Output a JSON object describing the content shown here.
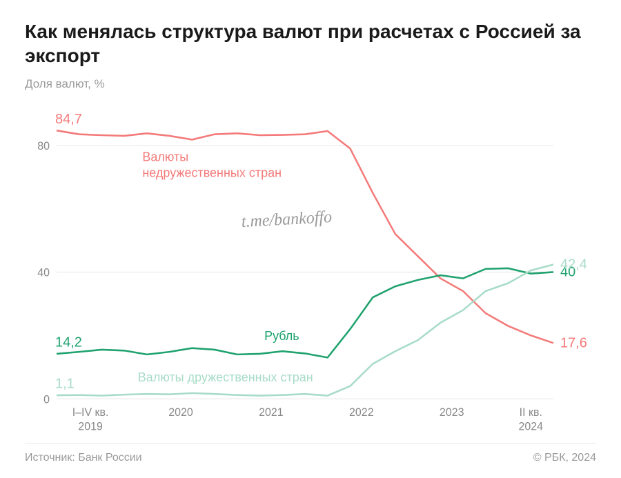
{
  "title": "Как менялась структура валют при расчетах с Россией за экспорт",
  "subtitle": "Доля валют, %",
  "chart": {
    "type": "line",
    "background_color": "#ffffff",
    "grid_color": "#e8e8e8",
    "axis_label_color": "#888888",
    "ylim": [
      0,
      90
    ],
    "yticks": [
      0,
      40,
      80
    ],
    "x_index_range": [
      0,
      22
    ],
    "x_ticks": [
      {
        "idx": 1.5,
        "line1": "I–IV кв.",
        "line2": "2019"
      },
      {
        "idx": 5.5,
        "line1": "2020"
      },
      {
        "idx": 9.5,
        "line1": "2021"
      },
      {
        "idx": 13.5,
        "line1": "2022"
      },
      {
        "idx": 17.5,
        "line1": "2023"
      },
      {
        "idx": 21,
        "line1": "II кв.",
        "line2": "2024"
      }
    ],
    "series": [
      {
        "name": "Валюты недружественных стран",
        "label_line1": "Валюты",
        "label_line2": "недружественных стран",
        "color": "#f47a7a",
        "start_label": "84,7",
        "end_label": "17,6",
        "line_width": 2.5,
        "label_pos": {
          "x_idx": 3.8,
          "y_val": 75
        },
        "values": [
          84.7,
          83.5,
          83.2,
          83.0,
          83.8,
          83.0,
          81.8,
          83.5,
          83.8,
          83.2,
          83.3,
          83.5,
          84.5,
          79.0,
          65.0,
          52.0,
          45.0,
          38.0,
          34.0,
          27.0,
          23.0,
          20.0,
          17.6
        ]
      },
      {
        "name": "Рубль",
        "label_line1": "Рубль",
        "color": "#1fa26e",
        "start_label": "14,2",
        "end_label": "40",
        "line_width": 2.8,
        "label_pos": {
          "x_idx": 9.2,
          "y_val": 18.5
        },
        "values": [
          14.2,
          14.8,
          15.5,
          15.2,
          14.0,
          14.8,
          16.0,
          15.5,
          14.0,
          14.2,
          15.0,
          14.3,
          13.0,
          22.0,
          32.0,
          35.5,
          37.5,
          39.0,
          38.0,
          41.0,
          41.2,
          39.5,
          40.0
        ]
      },
      {
        "name": "Валюты дружественных стран",
        "label_line1": "Валюты дружественных стран",
        "color": "#a8dcc8",
        "start_label": "1,1",
        "end_label": "42,4",
        "line_width": 2.5,
        "label_pos": {
          "x_idx": 3.6,
          "y_val": 5.5
        },
        "values": [
          1.1,
          1.2,
          1.0,
          1.3,
          1.5,
          1.4,
          1.8,
          1.5,
          1.2,
          1.0,
          1.2,
          1.5,
          1.0,
          4.0,
          11.0,
          15.0,
          18.5,
          24.0,
          28.0,
          34.0,
          36.5,
          40.5,
          42.4
        ]
      }
    ],
    "watermark": "t.me/bankoffo"
  },
  "footer": {
    "source": "Источник: Банк России",
    "copyright": "© РБК, 2024"
  }
}
